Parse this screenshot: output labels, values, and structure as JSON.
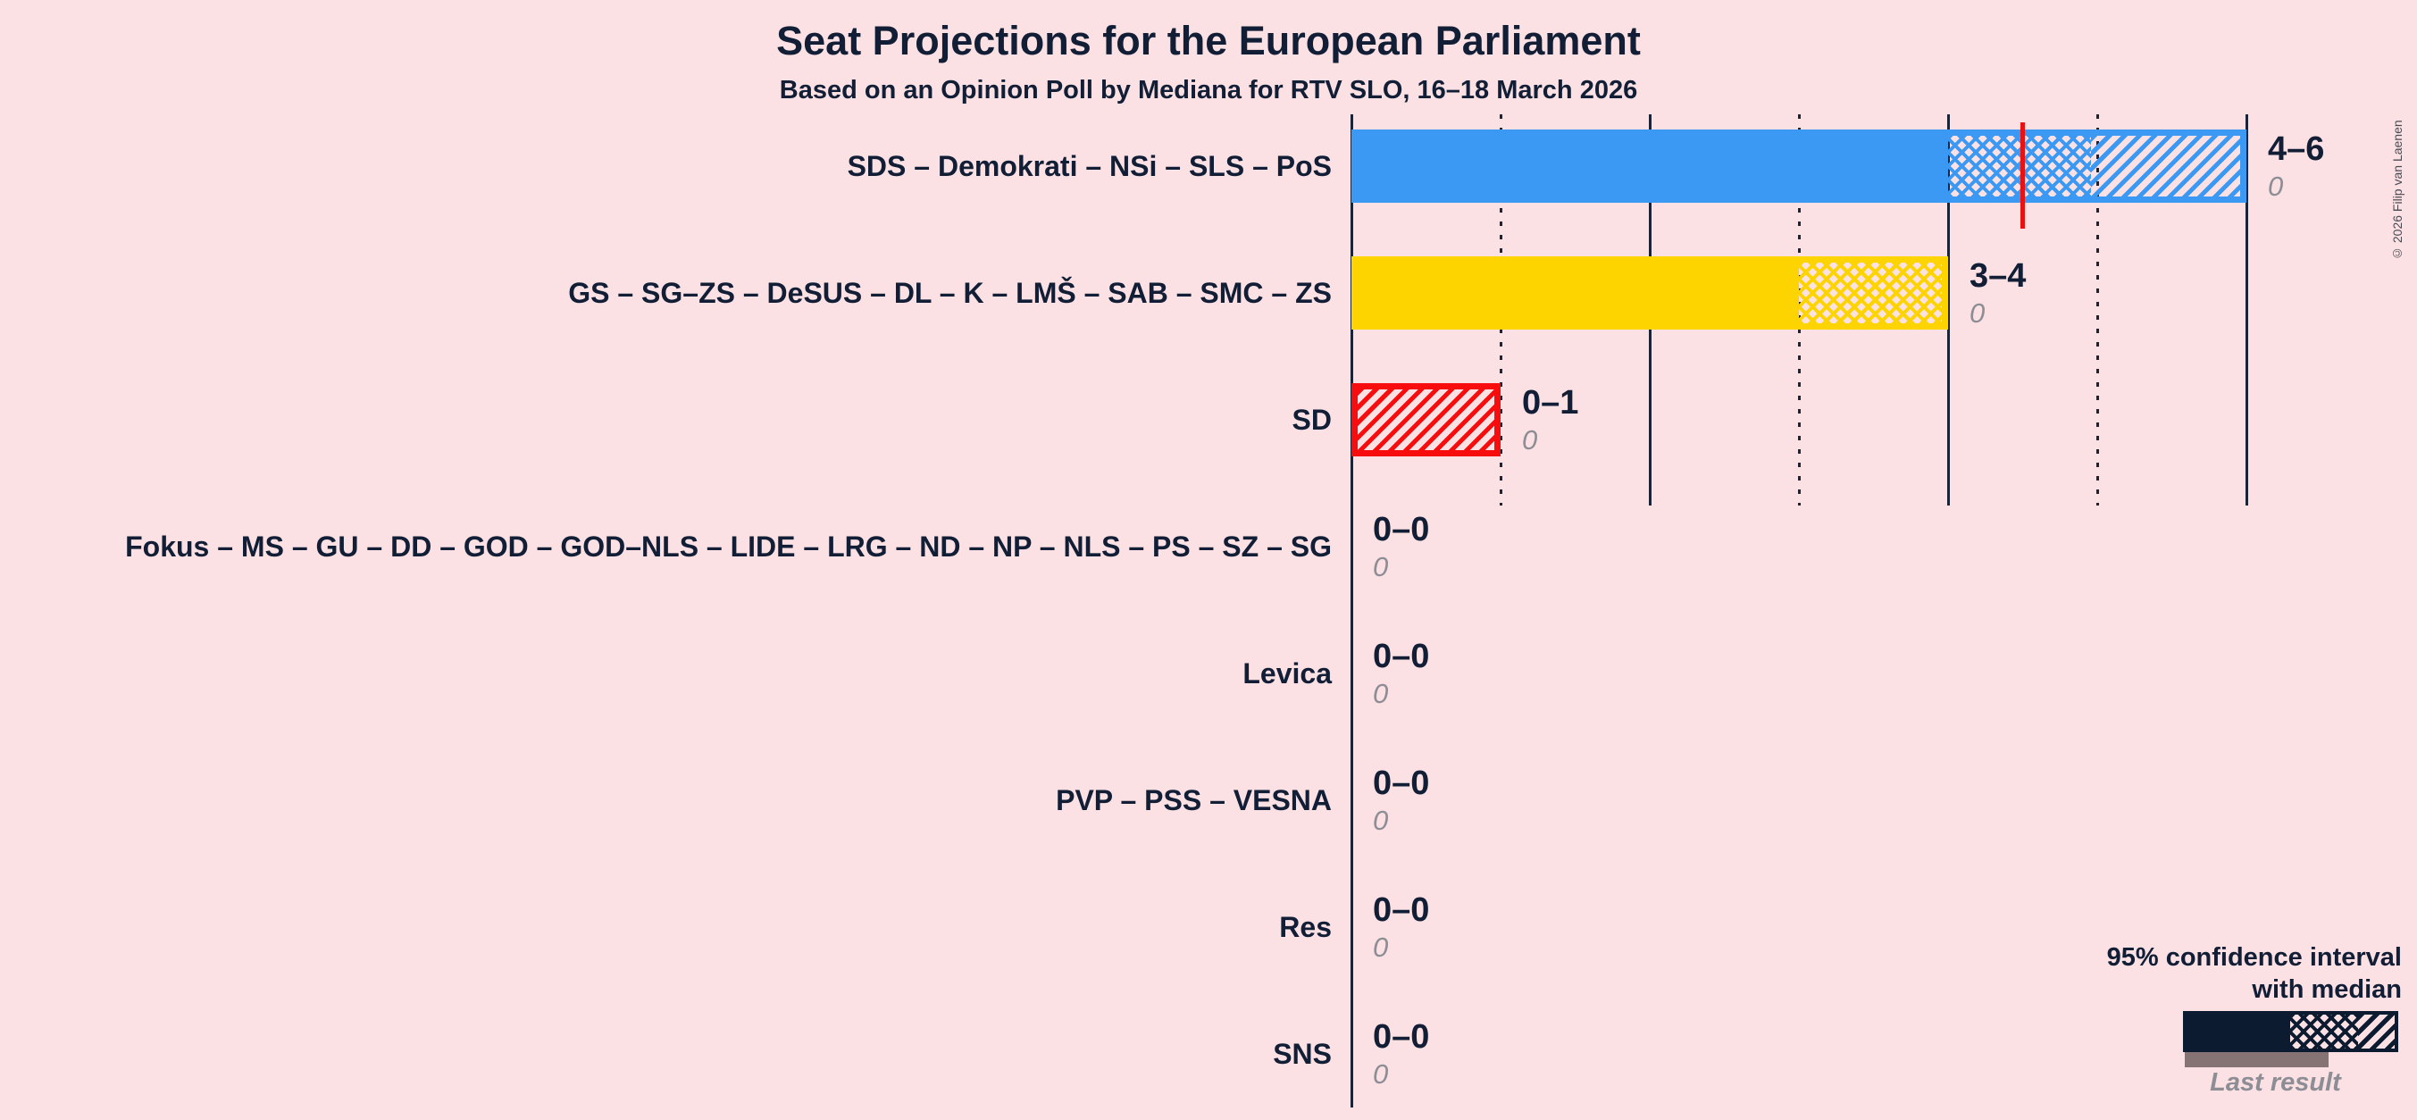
{
  "copyright": "© 2026 Filip van Laenen",
  "legend": {
    "ci_line1": "95% confidence interval",
    "ci_line2": "with median",
    "last_result": "Last result"
  },
  "colors": {
    "background": "#FBE1E3",
    "text_navy": "#111E36",
    "gridline": "#1B2435",
    "median_red": "#EC1111",
    "blue_bar": "#3B99F4",
    "yellow_bar": "#FDD400",
    "red_bar": "#F70D0D",
    "legend_navy": "#0D1B30",
    "last_result_gray": "#867373",
    "value_gray": "#8D8D95"
  },
  "chart_data": {
    "type": "bar",
    "orientation": "horizontal",
    "title": "Seat Projections for the European Parliament",
    "subtitle": "Based on an Opinion Poll by Mediana for RTV SLO, 16–18 March 2026",
    "unit": "seats",
    "x_axis": {
      "min": 0,
      "max": 6,
      "solid_gridlines": [
        0,
        2,
        4,
        6
      ],
      "dotted_gridlines": [
        1,
        3,
        5
      ],
      "labels_shown": false
    },
    "legend_position": "bottom-right",
    "parties": [
      {
        "name": "SDS – Demokrati – NSi – SLS – PoS",
        "ci_label": "4–6",
        "ci_low": 4,
        "ci_high": 6,
        "solid_to": 4,
        "crosshatch_to": 5,
        "hatch_to": 6,
        "median_line": 4.5,
        "last_result": 0,
        "last_result_label": "0",
        "color": "#3B99F4",
        "outline": false
      },
      {
        "name": "GS – SG–ZS – DeSUS – DL – K – LMŠ – SAB – SMC – ZS",
        "ci_label": "3–4",
        "ci_low": 3,
        "ci_high": 4,
        "solid_to": 3,
        "crosshatch_to": 4,
        "hatch_to": 4,
        "median_line": null,
        "last_result": 0,
        "last_result_label": "0",
        "color": "#FDD400",
        "outline": false
      },
      {
        "name": "SD",
        "ci_label": "0–1",
        "ci_low": 0,
        "ci_high": 1,
        "solid_to": 0,
        "crosshatch_to": 0,
        "hatch_to": 1,
        "median_line": null,
        "last_result": 0,
        "last_result_label": "0",
        "color": "#F70D0D",
        "outline": true
      },
      {
        "name": "Fokus – MS – GU – DD – GOD – GOD–NLS – LIDE – LRG – ND – NP – NLS – PS – SZ – SG",
        "ci_label": "0–0",
        "ci_low": 0,
        "ci_high": 0,
        "solid_to": 0,
        "crosshatch_to": 0,
        "hatch_to": 0,
        "median_line": null,
        "last_result": 0,
        "last_result_label": "0",
        "color": "#111E36",
        "outline": false
      },
      {
        "name": "Levica",
        "ci_label": "0–0",
        "ci_low": 0,
        "ci_high": 0,
        "solid_to": 0,
        "crosshatch_to": 0,
        "hatch_to": 0,
        "median_line": null,
        "last_result": 0,
        "last_result_label": "0",
        "color": "#111E36",
        "outline": false
      },
      {
        "name": "PVP – PSS – VESNA",
        "ci_label": "0–0",
        "ci_low": 0,
        "ci_high": 0,
        "solid_to": 0,
        "crosshatch_to": 0,
        "hatch_to": 0,
        "median_line": null,
        "last_result": 0,
        "last_result_label": "0",
        "color": "#111E36",
        "outline": false
      },
      {
        "name": "Res",
        "ci_label": "0–0",
        "ci_low": 0,
        "ci_high": 0,
        "solid_to": 0,
        "crosshatch_to": 0,
        "hatch_to": 0,
        "median_line": null,
        "last_result": 0,
        "last_result_label": "0",
        "color": "#111E36",
        "outline": false
      },
      {
        "name": "SNS",
        "ci_label": "0–0",
        "ci_low": 0,
        "ci_high": 0,
        "solid_to": 0,
        "crosshatch_to": 0,
        "hatch_to": 0,
        "median_line": null,
        "last_result": 0,
        "last_result_label": "0",
        "color": "#111E36",
        "outline": false
      }
    ]
  }
}
